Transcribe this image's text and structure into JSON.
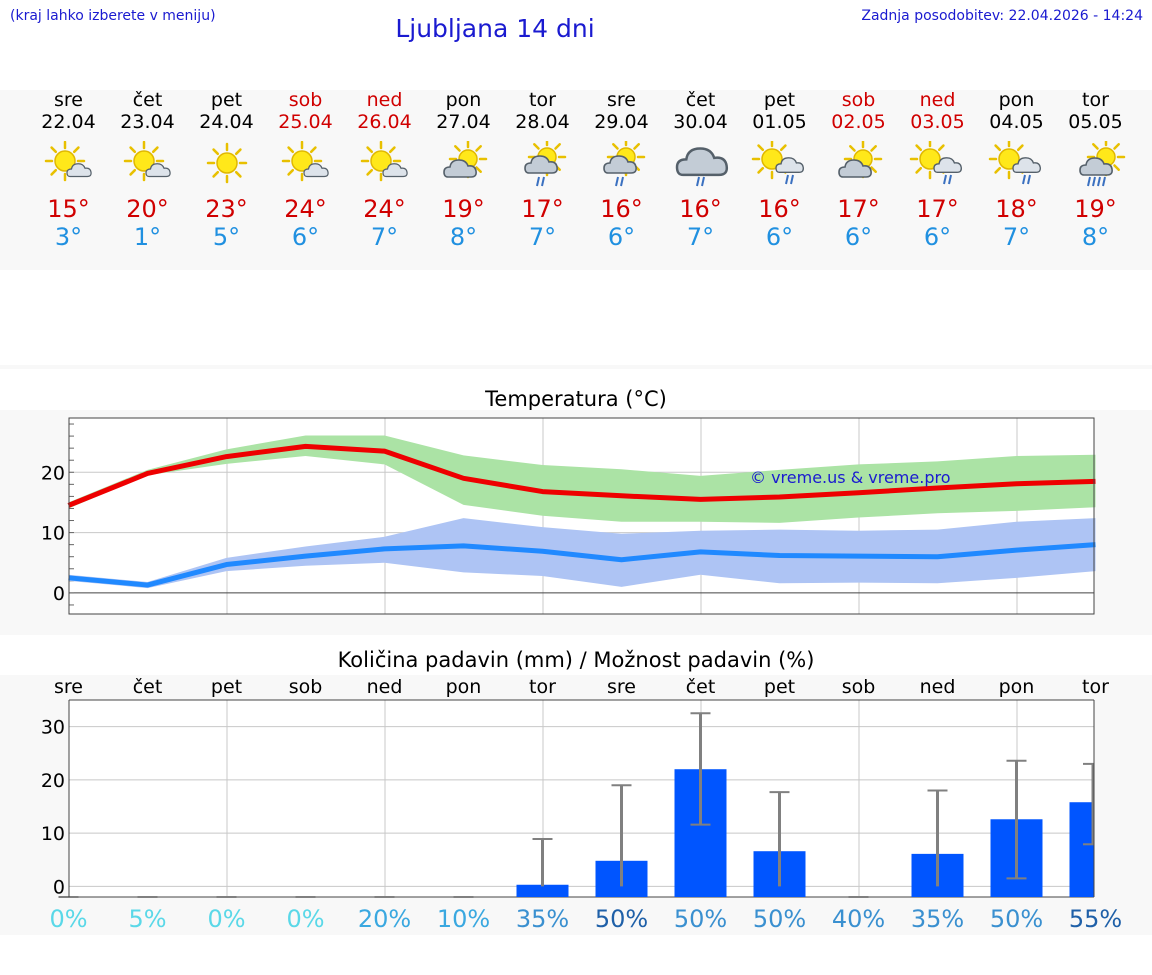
{
  "header": {
    "location_hint": "(kraj lahko izberete v meniju)",
    "title": "Ljubljana 14 dni",
    "updated": "Zadnja posodobitev: 22.04.2026 - 14:24"
  },
  "days": [
    {
      "name": "sre",
      "date": "22.04",
      "icon": "sun-cloud-icon",
      "max": "15°",
      "min": "3°",
      "weekend": false
    },
    {
      "name": "čet",
      "date": "23.04",
      "icon": "sun-cloud-icon",
      "max": "20°",
      "min": "1°",
      "weekend": false
    },
    {
      "name": "pet",
      "date": "24.04",
      "icon": "sun-icon",
      "max": "23°",
      "min": "5°",
      "weekend": false
    },
    {
      "name": "sob",
      "date": "25.04",
      "icon": "sun-cloud-icon",
      "max": "24°",
      "min": "6°",
      "weekend": true
    },
    {
      "name": "ned",
      "date": "26.04",
      "icon": "sun-cloud-icon",
      "max": "24°",
      "min": "7°",
      "weekend": true
    },
    {
      "name": "pon",
      "date": "27.04",
      "icon": "cloud-sun-icon",
      "max": "19°",
      "min": "8°",
      "weekend": false
    },
    {
      "name": "tor",
      "date": "28.04",
      "icon": "cloud-sun-rain-icon",
      "max": "17°",
      "min": "7°",
      "weekend": false
    },
    {
      "name": "sre",
      "date": "29.04",
      "icon": "cloud-sun-rain-icon",
      "max": "16°",
      "min": "6°",
      "weekend": false
    },
    {
      "name": "čet",
      "date": "30.04",
      "icon": "cloud-rain-icon",
      "max": "16°",
      "min": "7°",
      "weekend": false
    },
    {
      "name": "pet",
      "date": "01.05",
      "icon": "sun-cloud-rain-icon",
      "max": "16°",
      "min": "6°",
      "weekend": false
    },
    {
      "name": "sob",
      "date": "02.05",
      "icon": "cloud-sun-icon",
      "max": "17°",
      "min": "6°",
      "weekend": true
    },
    {
      "name": "ned",
      "date": "03.05",
      "icon": "sun-cloud-rain-icon",
      "max": "17°",
      "min": "6°",
      "weekend": true
    },
    {
      "name": "pon",
      "date": "04.05",
      "icon": "sun-cloud-rain-icon",
      "max": "18°",
      "min": "7°",
      "weekend": false
    },
    {
      "name": "tor",
      "date": "05.05",
      "icon": "cloud-sun-heavy-rain-icon",
      "max": "19°",
      "min": "8°",
      "weekend": false
    }
  ],
  "colors": {
    "max_line": "#ee0000",
    "max_band": "#abe3a5",
    "min_line": "#2089ff",
    "min_band": "#aec4f4",
    "bar": "#0055ff",
    "whisker": "#808080",
    "weekend": "#d00000",
    "min_text": "#2090e0"
  },
  "chart_data": [
    {
      "type": "line",
      "title": "Temperatura (°C)",
      "watermark": "© vreme.us & vreme.pro",
      "ylim": [
        -3.5,
        29
      ],
      "yticks": [
        0,
        10,
        20
      ],
      "x": [
        0,
        1,
        2,
        3,
        4,
        5,
        6,
        7,
        8,
        9,
        10,
        11,
        12,
        13
      ],
      "series": [
        {
          "key": "max",
          "values": [
            14.5,
            19.8,
            22.6,
            24.3,
            23.5,
            19.0,
            16.8,
            16.1,
            15.5,
            15.9,
            16.6,
            17.4,
            18.1,
            18.5
          ],
          "band_low": [
            14,
            19.5,
            21.4,
            22.7,
            21.3,
            14.6,
            12.8,
            11.8,
            11.8,
            11.6,
            12.5,
            13.2,
            13.6,
            14.2
          ],
          "band_high": [
            15,
            20.4,
            23.8,
            26.1,
            26.1,
            22.8,
            21.2,
            20.5,
            19.4,
            20.4,
            21.3,
            21.8,
            22.7,
            22.9
          ]
        },
        {
          "key": "min",
          "values": [
            2.5,
            1.3,
            4.7,
            6.1,
            7.3,
            7.8,
            6.9,
            5.5,
            6.8,
            6.2,
            6.1,
            6.0,
            7.1,
            8.0
          ],
          "band_low": [
            2.0,
            0.8,
            3.6,
            4.5,
            5.0,
            3.4,
            2.8,
            1.0,
            3.0,
            1.6,
            1.7,
            1.6,
            2.5,
            3.6
          ],
          "band_high": [
            3.0,
            1.8,
            5.8,
            7.7,
            9.3,
            12.4,
            10.9,
            9.8,
            10.3,
            10.5,
            10.3,
            10.5,
            11.8,
            12.4
          ]
        }
      ]
    },
    {
      "type": "bar",
      "title": "Količina padavin (mm) / Možnost padavin (%)",
      "categories": [
        "sre",
        "čet",
        "pet",
        "sob",
        "ned",
        "pon",
        "tor",
        "sre",
        "čet",
        "pet",
        "sob",
        "ned",
        "pon",
        "tor"
      ],
      "values": [
        0,
        0,
        0,
        0,
        0,
        0,
        0.3,
        4.8,
        22,
        6.6,
        0,
        6.1,
        12.6,
        15.8
      ],
      "err_low": [
        0,
        0,
        0,
        0,
        0,
        0,
        0,
        0,
        11.6,
        0,
        0,
        0,
        1.5,
        7.9
      ],
      "err_high": [
        0,
        0,
        0,
        0,
        0,
        0,
        8.9,
        19,
        32.5,
        17.7,
        0,
        18,
        23.6,
        23
      ],
      "probability": [
        "0%",
        "5%",
        "0%",
        "0%",
        "20%",
        "10%",
        "35%",
        "50%",
        "50%",
        "50%",
        "40%",
        "35%",
        "50%",
        "55%"
      ],
      "prob_colors": [
        "#5ad8e8",
        "#5ad8e8",
        "#5ad8e8",
        "#5ad8e8",
        "#3aa8e0",
        "#3aa8e0",
        "#3a90d0",
        "#1f60a8",
        "#3a90d0",
        "#3a90d0",
        "#3a90d0",
        "#3a90d0",
        "#3a90d0",
        "#1f60a8"
      ],
      "ylim": [
        -2,
        35
      ],
      "yticks": [
        0,
        10,
        20,
        30
      ]
    }
  ]
}
